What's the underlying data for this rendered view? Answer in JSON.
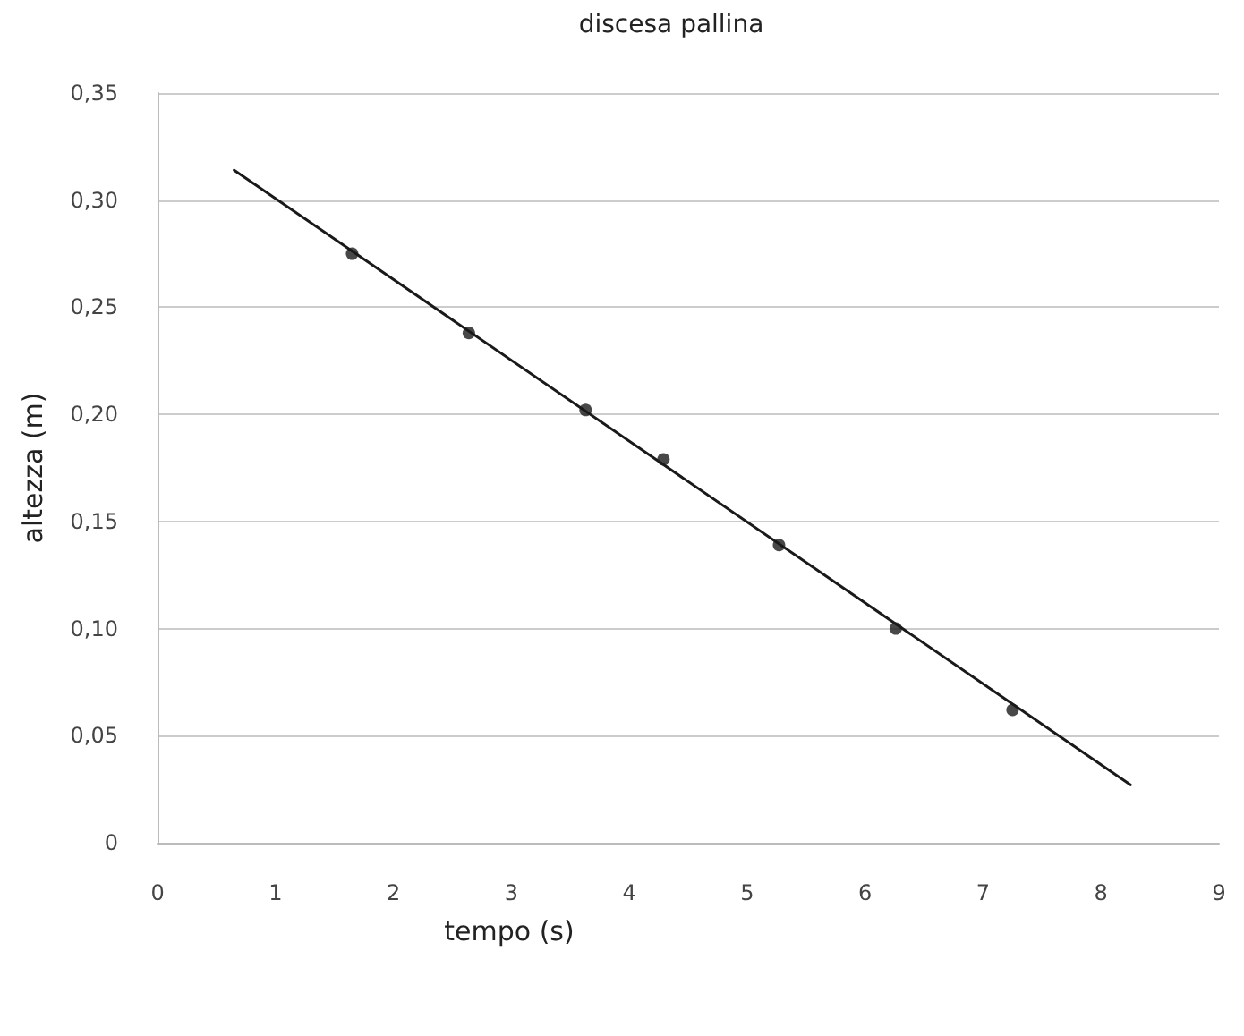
{
  "chart_data": {
    "type": "scatter",
    "title": "discesa pallina",
    "xlabel": "tempo (s)",
    "ylabel": "altezza (m)",
    "xlim": [
      0,
      9
    ],
    "xticks": [
      0,
      1,
      2,
      3,
      4,
      5,
      6,
      7,
      8,
      9
    ],
    "ylim": [
      0,
      0.35
    ],
    "yticks": [
      {
        "value": 0,
        "label": "0"
      },
      {
        "value": 0.05,
        "label": "0,05"
      },
      {
        "value": 0.1,
        "label": "0,10"
      },
      {
        "value": 0.15,
        "label": "0,15"
      },
      {
        "value": 0.2,
        "label": "0,20"
      },
      {
        "value": 0.25,
        "label": "0,25"
      },
      {
        "value": 0.3,
        "label": "0,30"
      },
      {
        "value": 0.35,
        "label": "0,35"
      }
    ],
    "grid": "y",
    "series": [
      {
        "color": "#1a1a1a",
        "marker": "circle",
        "x": [
          1.65,
          2.64,
          3.63,
          4.29,
          5.27,
          6.26,
          7.25
        ],
        "values": [
          0.275,
          0.238,
          0.202,
          0.179,
          0.139,
          0.1,
          0.062
        ]
      },
      {
        "type": "line",
        "color": "#1a1a1a",
        "marker": "none",
        "x": [
          0.65,
          8.25
        ],
        "values": [
          0.314,
          0.027
        ]
      }
    ]
  }
}
